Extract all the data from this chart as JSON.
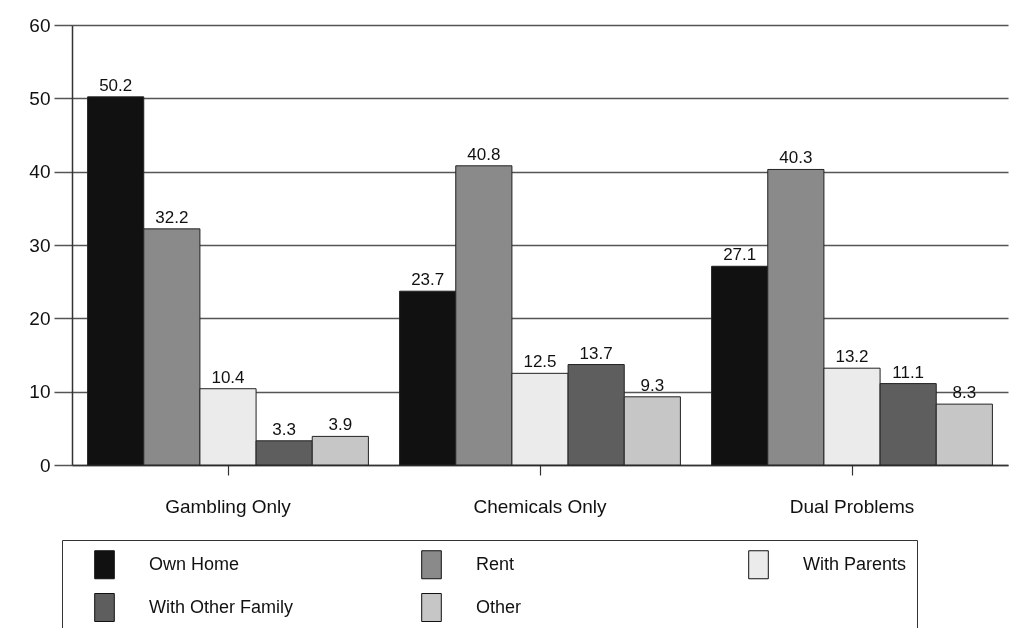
{
  "chart_data": {
    "type": "bar",
    "categories": [
      "Gambling Only",
      "Chemicals Only",
      "Dual Problems"
    ],
    "series": [
      {
        "name": "Own Home",
        "color": "#111111",
        "values": [
          50.2,
          23.7,
          27.1
        ]
      },
      {
        "name": "Rent",
        "color": "#8a8a8a",
        "values": [
          32.2,
          40.8,
          40.3
        ]
      },
      {
        "name": "With Parents",
        "color": "#ebebeb",
        "values": [
          10.4,
          12.5,
          13.2
        ]
      },
      {
        "name": "With Other Family",
        "color": "#5e5e5e",
        "values": [
          3.3,
          13.7,
          11.1
        ]
      },
      {
        "name": "Other",
        "color": "#c6c6c6",
        "values": [
          3.9,
          9.3,
          8.3
        ]
      }
    ],
    "ylim": [
      0,
      60
    ],
    "yticks": [
      0,
      10,
      20,
      30,
      40,
      50,
      60
    ],
    "grid": "y",
    "legend": "bottom",
    "data_labels": true
  }
}
